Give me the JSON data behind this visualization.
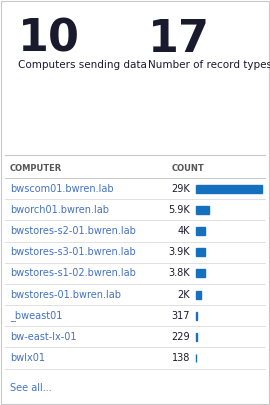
{
  "big_numbers": [
    "10",
    "17"
  ],
  "big_labels": [
    "Computers sending data",
    "Number of record types"
  ],
  "table_headers": [
    "COMPUTER",
    "COUNT"
  ],
  "rows": [
    {
      "name": "bwscom01.bwren.lab",
      "count": "29K",
      "value": 29000
    },
    {
      "name": "bworch01.bwren.lab",
      "count": "5.9K",
      "value": 5900
    },
    {
      "name": "bwstores-s2-01.bwren.lab",
      "count": "4K",
      "value": 4000
    },
    {
      "name": "bwstores-s3-01.bwren.lab",
      "count": "3.9K",
      "value": 3900
    },
    {
      "name": "bwstores-s1-02.bwren.lab",
      "count": "3.8K",
      "value": 3800
    },
    {
      "name": "bwstores-01.bwren.lab",
      "count": "2K",
      "value": 2000
    },
    {
      "name": "_bweast01",
      "count": "317",
      "value": 317
    },
    {
      "name": "bw-east-lx-01",
      "count": "229",
      "value": 229
    },
    {
      "name": "bwlx01",
      "count": "138",
      "value": 138
    }
  ],
  "max_value": 29000,
  "bar_color": "#1570be",
  "background_color": "#ffffff",
  "border_color": "#c8c8c8",
  "text_color_dark": "#1a1a2e",
  "text_color_blue": "#4472c4",
  "text_color_header": "#555555",
  "see_all_color": "#4472c4",
  "big_num_fontsize": 32,
  "big_label_fontsize": 7.5,
  "header_fontsize": 6.0,
  "row_fontsize": 7.0,
  "count_fontsize": 7.0
}
